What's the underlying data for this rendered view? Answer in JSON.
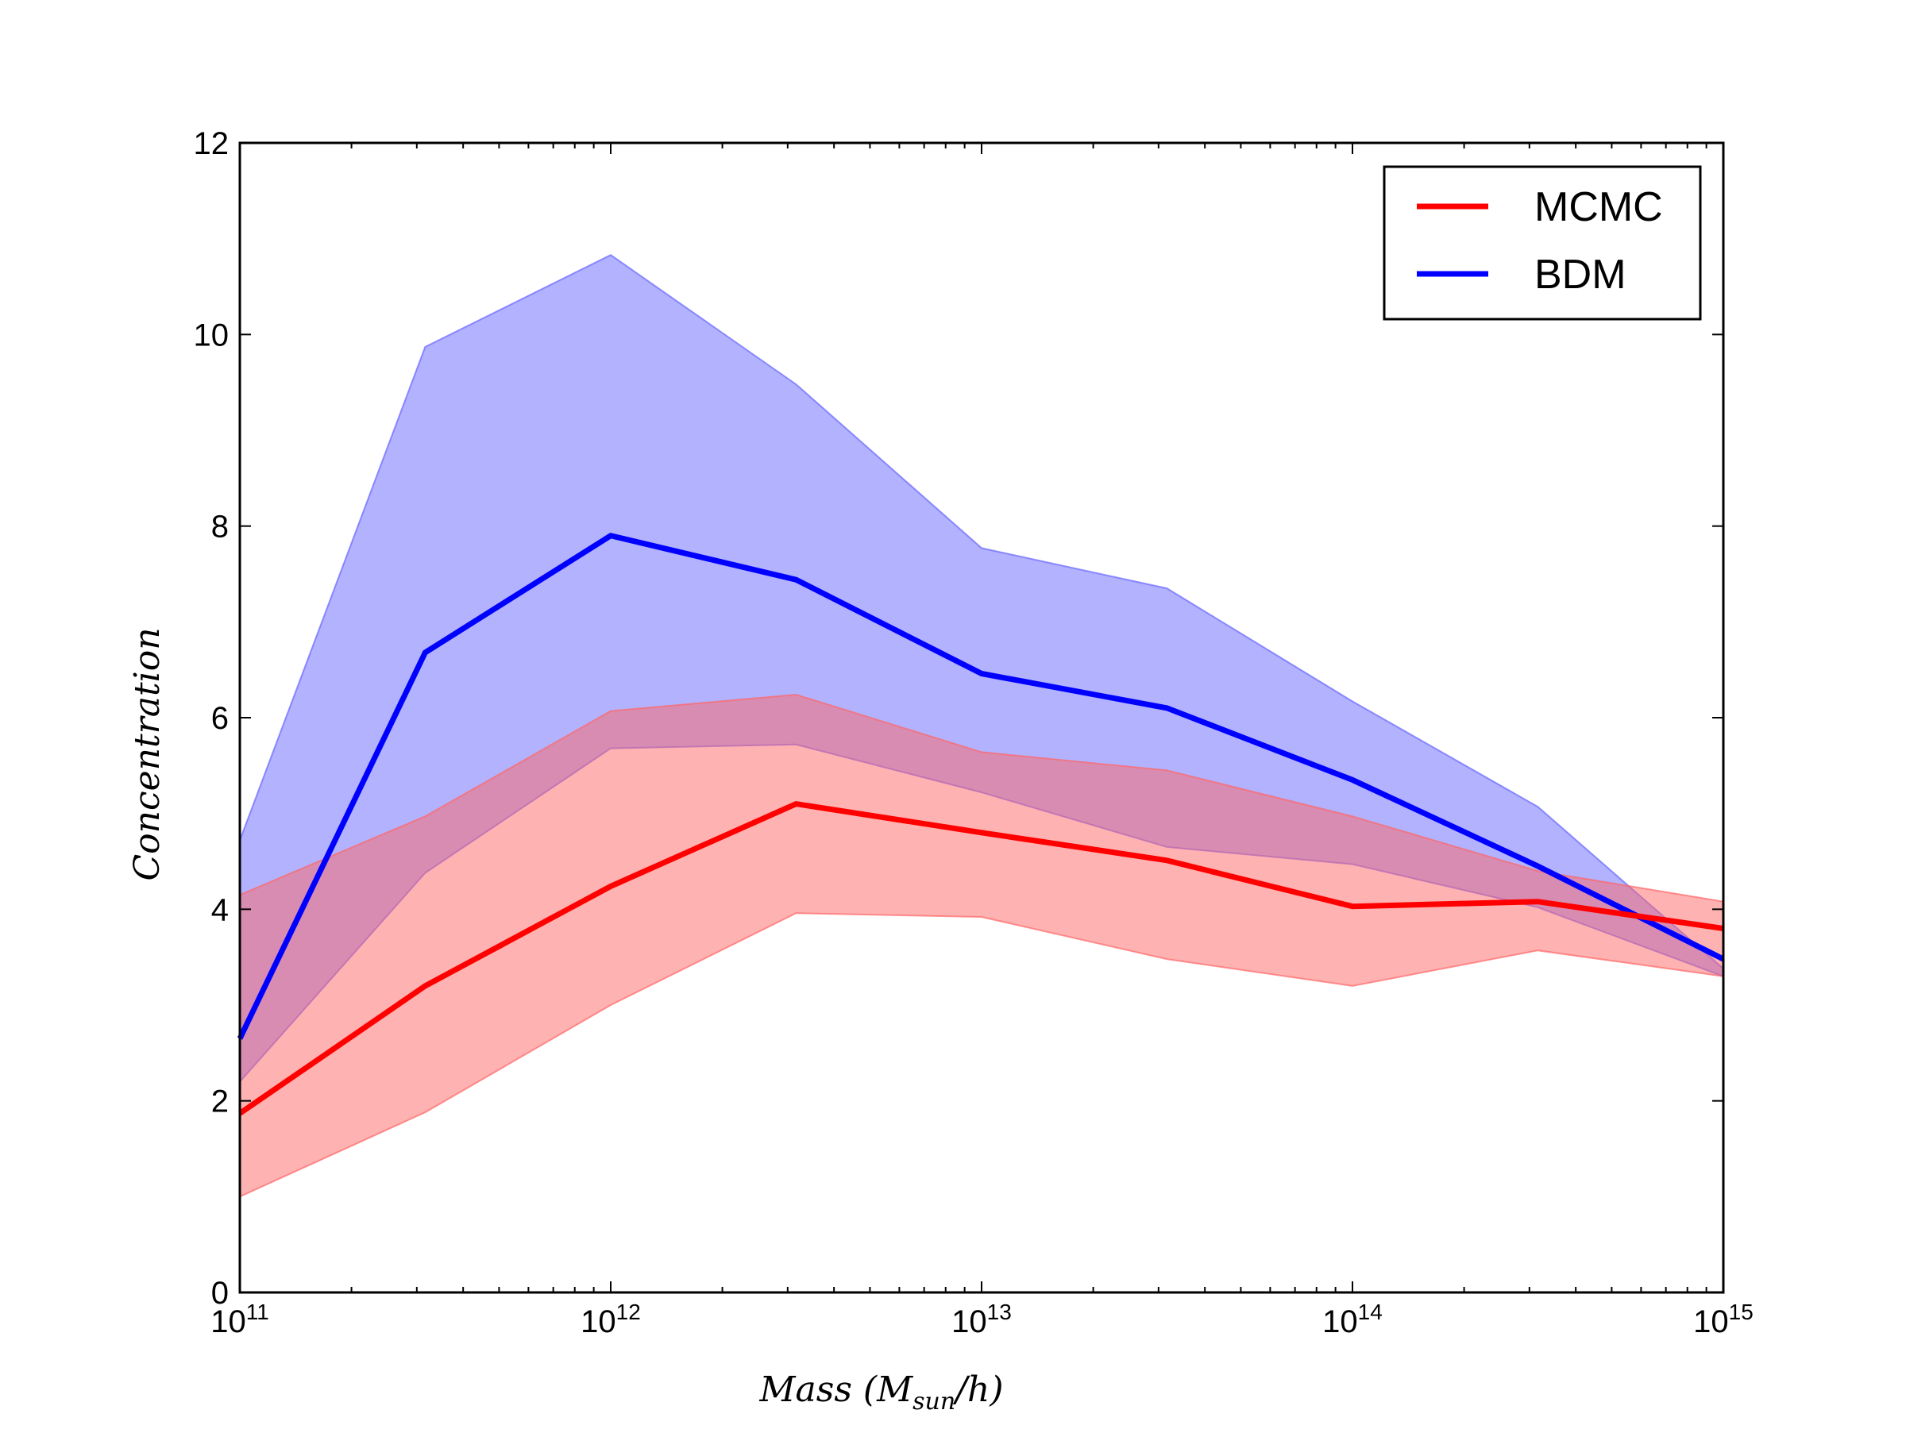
{
  "chart_data": {
    "type": "line",
    "x_scale": "log",
    "xlim": [
      100000000000.0,
      1000000000000000.0
    ],
    "ylim": [
      0,
      12
    ],
    "x": [
      100000000000.0,
      316000000000.0,
      1000000000000.0,
      3160000000000.0,
      10000000000000.0,
      31600000000000.0,
      100000000000000.0,
      316000000000000.0,
      1000000000000000.0
    ],
    "xlabel": {
      "prefix": "Mass (M",
      "sub": "sun",
      "suffix": "/h)"
    },
    "ylabel": "Concentration",
    "x_ticks": [
      {
        "base": "10",
        "exp": "11",
        "value": 100000000000.0
      },
      {
        "base": "10",
        "exp": "12",
        "value": 1000000000000.0
      },
      {
        "base": "10",
        "exp": "13",
        "value": 10000000000000.0
      },
      {
        "base": "10",
        "exp": "14",
        "value": 100000000000000.0
      },
      {
        "base": "10",
        "exp": "15",
        "value": 1000000000000000.0
      }
    ],
    "y_ticks": [
      "0",
      "2",
      "4",
      "6",
      "8",
      "10",
      "12"
    ],
    "legend_position": "top-right",
    "series": [
      {
        "name": "BDM",
        "color": "#0000ff",
        "band_color": "#6666ff",
        "values": [
          2.65,
          6.68,
          7.9,
          7.44,
          6.46,
          6.1,
          5.35,
          4.45,
          3.48
        ],
        "lower": [
          2.2,
          4.38,
          5.68,
          5.72,
          5.22,
          4.65,
          4.47,
          4.02,
          3.3
        ],
        "upper": [
          4.72,
          9.87,
          10.83,
          9.48,
          7.77,
          7.35,
          6.17,
          5.07,
          3.38
        ]
      },
      {
        "name": "MCMC",
        "color": "#ff0000",
        "band_color": "#ff6666",
        "values": [
          1.87,
          3.2,
          4.24,
          5.1,
          4.8,
          4.51,
          4.03,
          4.08,
          3.8
        ],
        "lower": [
          1.0,
          1.88,
          3.0,
          3.96,
          3.92,
          3.48,
          3.2,
          3.57,
          3.3
        ],
        "upper": [
          4.15,
          4.97,
          6.07,
          6.24,
          5.64,
          5.45,
          4.97,
          4.4,
          4.08
        ]
      }
    ],
    "legend_order": [
      "MCMC",
      "BDM"
    ]
  }
}
